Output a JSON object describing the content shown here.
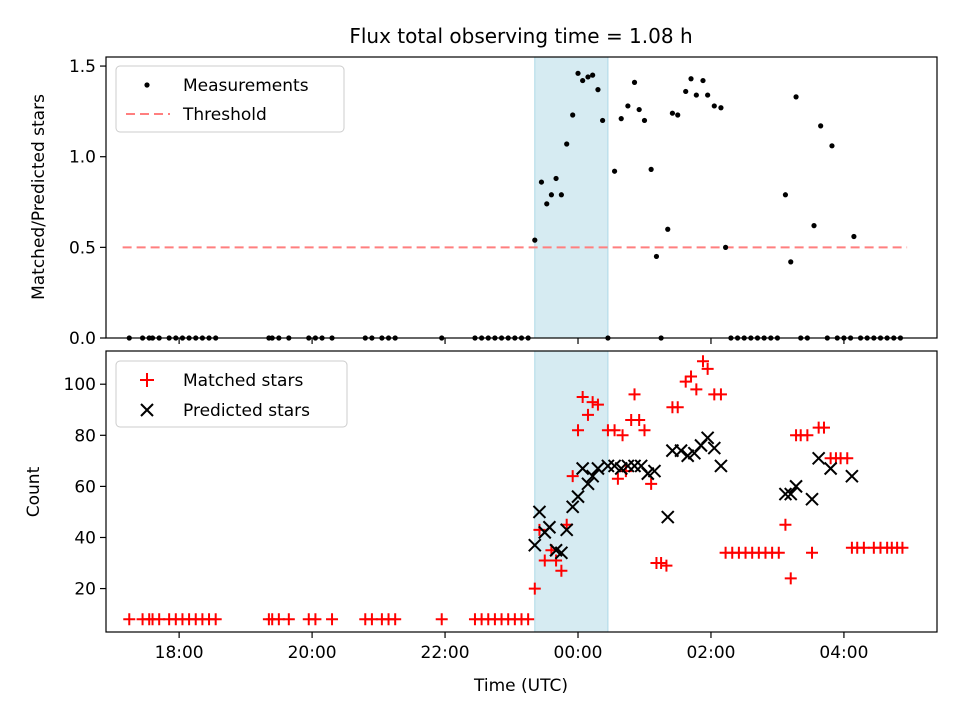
{
  "figure_title": "Flux total observing time = 1.08 h",
  "colors": {
    "measurement": "#000000",
    "threshold": "#ff7f7f",
    "matched": "#ff0000",
    "predicted": "#000000",
    "shade": "#add8e6"
  },
  "chart_data": [
    {
      "type": "scatter",
      "panel": "top",
      "title": "Flux total observing time = 1.08 h",
      "xlabel": "",
      "ylabel": "Matched/Predicted stars",
      "xlim": [
        -7.1,
        5.4
      ],
      "ylim": [
        0,
        1.55
      ],
      "yticks": [
        0.0,
        0.5,
        1.0,
        1.5
      ],
      "ytick_labels": [
        "0.0",
        "0.5",
        "1.0",
        "1.5"
      ],
      "shaded_span": [
        -0.65,
        0.45
      ],
      "legend": {
        "position": "upper left",
        "entries": [
          "Measurements",
          "Threshold"
        ]
      },
      "series": [
        {
          "name": "Measurements",
          "points": [
            [
              -6.75,
              0
            ],
            [
              -6.55,
              0
            ],
            [
              -6.45,
              0
            ],
            [
              -6.4,
              0
            ],
            [
              -6.3,
              0
            ],
            [
              -6.15,
              0
            ],
            [
              -6.05,
              0
            ],
            [
              -5.95,
              0
            ],
            [
              -5.85,
              0
            ],
            [
              -5.75,
              0
            ],
            [
              -5.65,
              0
            ],
            [
              -5.55,
              0
            ],
            [
              -5.45,
              0
            ],
            [
              -4.65,
              0
            ],
            [
              -4.6,
              0
            ],
            [
              -4.5,
              0
            ],
            [
              -4.35,
              0
            ],
            [
              -4.05,
              0
            ],
            [
              -3.95,
              0
            ],
            [
              -3.85,
              0
            ],
            [
              -3.7,
              0
            ],
            [
              -3.2,
              0
            ],
            [
              -3.1,
              0
            ],
            [
              -2.95,
              0
            ],
            [
              -2.85,
              0
            ],
            [
              -2.75,
              0
            ],
            [
              -2.05,
              0
            ],
            [
              -1.55,
              0
            ],
            [
              -1.45,
              0
            ],
            [
              -1.35,
              0
            ],
            [
              -1.25,
              0
            ],
            [
              -1.15,
              0
            ],
            [
              -1.05,
              0
            ],
            [
              -0.95,
              0
            ],
            [
              -0.85,
              0
            ],
            [
              -0.75,
              0
            ],
            [
              -0.65,
              0.54
            ],
            [
              -0.55,
              0.86
            ],
            [
              -0.47,
              0.74
            ],
            [
              -0.4,
              0.79
            ],
            [
              -0.33,
              0.88
            ],
            [
              -0.25,
              0.79
            ],
            [
              -0.17,
              1.07
            ],
            [
              -0.08,
              1.23
            ],
            [
              0.0,
              1.46
            ],
            [
              0.07,
              1.42
            ],
            [
              0.15,
              1.44
            ],
            [
              0.22,
              1.45
            ],
            [
              0.3,
              1.37
            ],
            [
              0.37,
              1.2
            ],
            [
              0.45,
              0
            ],
            [
              0.55,
              0.92
            ],
            [
              0.65,
              1.21
            ],
            [
              0.75,
              1.28
            ],
            [
              0.85,
              1.41
            ],
            [
              0.92,
              1.26
            ],
            [
              1.0,
              1.2
            ],
            [
              1.1,
              0.93
            ],
            [
              1.18,
              0.45
            ],
            [
              1.25,
              0
            ],
            [
              1.35,
              0.6
            ],
            [
              1.42,
              1.24
            ],
            [
              1.5,
              1.23
            ],
            [
              1.62,
              1.36
            ],
            [
              1.7,
              1.43
            ],
            [
              1.78,
              1.34
            ],
            [
              1.88,
              1.42
            ],
            [
              1.95,
              1.34
            ],
            [
              2.05,
              1.28
            ],
            [
              2.15,
              1.27
            ],
            [
              2.22,
              0.5
            ],
            [
              2.3,
              0
            ],
            [
              2.4,
              0
            ],
            [
              2.5,
              0
            ],
            [
              2.6,
              0
            ],
            [
              2.7,
              0
            ],
            [
              2.8,
              0
            ],
            [
              2.9,
              0
            ],
            [
              3.0,
              0
            ],
            [
              3.12,
              0.79
            ],
            [
              3.2,
              0.42
            ],
            [
              3.28,
              1.33
            ],
            [
              3.35,
              0
            ],
            [
              3.45,
              0
            ],
            [
              3.55,
              0.62
            ],
            [
              3.65,
              1.17
            ],
            [
              3.75,
              0
            ],
            [
              3.82,
              1.06
            ],
            [
              3.9,
              0
            ],
            [
              4.0,
              0
            ],
            [
              4.1,
              0
            ],
            [
              4.15,
              0.56
            ],
            [
              4.25,
              0
            ],
            [
              4.35,
              0
            ],
            [
              4.45,
              0
            ],
            [
              4.55,
              0
            ],
            [
              4.65,
              0
            ],
            [
              4.75,
              0
            ],
            [
              4.85,
              0
            ]
          ]
        },
        {
          "name": "Threshold",
          "line": [
            [
              -6.85,
              0.5
            ],
            [
              4.95,
              0.5
            ]
          ]
        }
      ]
    },
    {
      "type": "scatter",
      "panel": "bottom",
      "xlabel": "Time (UTC)",
      "ylabel": "Count",
      "xlim": [
        -7.1,
        5.4
      ],
      "ylim": [
        3,
        113
      ],
      "yticks": [
        20,
        40,
        60,
        80,
        100
      ],
      "ytick_labels": [
        "20",
        "40",
        "60",
        "80",
        "100"
      ],
      "xticks": [
        -6,
        -4,
        -2,
        0,
        2,
        4
      ],
      "xtick_labels": [
        "18:00",
        "20:00",
        "22:00",
        "00:00",
        "02:00",
        "04:00"
      ],
      "shaded_span": [
        -0.65,
        0.45
      ],
      "legend": {
        "position": "upper left",
        "entries": [
          "Matched stars",
          "Predicted stars"
        ]
      },
      "series": [
        {
          "name": "Matched stars",
          "points": [
            [
              -6.75,
              8
            ],
            [
              -6.55,
              8
            ],
            [
              -6.45,
              8
            ],
            [
              -6.4,
              8
            ],
            [
              -6.3,
              8
            ],
            [
              -6.15,
              8
            ],
            [
              -6.05,
              8
            ],
            [
              -5.95,
              8
            ],
            [
              -5.85,
              8
            ],
            [
              -5.75,
              8
            ],
            [
              -5.65,
              8
            ],
            [
              -5.55,
              8
            ],
            [
              -5.45,
              8
            ],
            [
              -4.65,
              8
            ],
            [
              -4.6,
              8
            ],
            [
              -4.5,
              8
            ],
            [
              -4.35,
              8
            ],
            [
              -4.05,
              8
            ],
            [
              -3.95,
              8
            ],
            [
              -3.7,
              8
            ],
            [
              -3.2,
              8
            ],
            [
              -3.1,
              8
            ],
            [
              -2.95,
              8
            ],
            [
              -2.85,
              8
            ],
            [
              -2.75,
              8
            ],
            [
              -2.05,
              8
            ],
            [
              -1.55,
              8
            ],
            [
              -1.45,
              8
            ],
            [
              -1.35,
              8
            ],
            [
              -1.25,
              8
            ],
            [
              -1.15,
              8
            ],
            [
              -1.05,
              8
            ],
            [
              -0.95,
              8
            ],
            [
              -0.85,
              8
            ],
            [
              -0.75,
              8
            ],
            [
              -0.65,
              20
            ],
            [
              -0.58,
              43
            ],
            [
              -0.5,
              31
            ],
            [
              -0.4,
              35
            ],
            [
              -0.33,
              31
            ],
            [
              -0.25,
              27
            ],
            [
              -0.17,
              45
            ],
            [
              -0.08,
              64
            ],
            [
              0.0,
              82
            ],
            [
              0.07,
              95
            ],
            [
              0.15,
              88
            ],
            [
              0.22,
              93
            ],
            [
              0.3,
              92
            ],
            [
              0.45,
              82
            ],
            [
              0.55,
              82
            ],
            [
              0.6,
              63
            ],
            [
              0.67,
              80
            ],
            [
              0.72,
              66
            ],
            [
              0.8,
              86
            ],
            [
              0.85,
              96
            ],
            [
              0.92,
              86
            ],
            [
              1.0,
              82
            ],
            [
              1.1,
              61
            ],
            [
              1.18,
              30
            ],
            [
              1.25,
              30
            ],
            [
              1.33,
              29
            ],
            [
              1.42,
              91
            ],
            [
              1.5,
              91
            ],
            [
              1.62,
              101
            ],
            [
              1.7,
              103
            ],
            [
              1.78,
              98
            ],
            [
              1.88,
              109
            ],
            [
              1.95,
              106
            ],
            [
              2.05,
              96
            ],
            [
              2.15,
              96
            ],
            [
              2.22,
              34
            ],
            [
              2.32,
              34
            ],
            [
              2.42,
              34
            ],
            [
              2.52,
              34
            ],
            [
              2.62,
              34
            ],
            [
              2.72,
              34
            ],
            [
              2.82,
              34
            ],
            [
              2.92,
              34
            ],
            [
              3.02,
              34
            ],
            [
              3.12,
              45
            ],
            [
              3.2,
              24
            ],
            [
              3.28,
              80
            ],
            [
              3.35,
              80
            ],
            [
              3.45,
              80
            ],
            [
              3.52,
              34
            ],
            [
              3.62,
              83
            ],
            [
              3.7,
              83
            ],
            [
              3.8,
              71
            ],
            [
              3.88,
              71
            ],
            [
              3.95,
              71
            ],
            [
              4.05,
              71
            ],
            [
              4.12,
              36
            ],
            [
              4.2,
              36
            ],
            [
              4.3,
              36
            ],
            [
              4.45,
              36
            ],
            [
              4.55,
              36
            ],
            [
              4.65,
              36
            ],
            [
              4.72,
              36
            ],
            [
              4.8,
              36
            ],
            [
              4.88,
              36
            ]
          ]
        },
        {
          "name": "Predicted stars",
          "points": [
            [
              -0.65,
              37
            ],
            [
              -0.58,
              50
            ],
            [
              -0.5,
              42
            ],
            [
              -0.43,
              44
            ],
            [
              -0.33,
              35
            ],
            [
              -0.25,
              34
            ],
            [
              -0.17,
              43
            ],
            [
              -0.08,
              52
            ],
            [
              0.0,
              56
            ],
            [
              0.07,
              67
            ],
            [
              0.15,
              61
            ],
            [
              0.22,
              64
            ],
            [
              0.3,
              67
            ],
            [
              0.45,
              68
            ],
            [
              0.55,
              68
            ],
            [
              0.65,
              67
            ],
            [
              0.75,
              68
            ],
            [
              0.85,
              68
            ],
            [
              0.95,
              68
            ],
            [
              1.05,
              65
            ],
            [
              1.15,
              66
            ],
            [
              1.35,
              48
            ],
            [
              1.42,
              74
            ],
            [
              1.55,
              74
            ],
            [
              1.65,
              72
            ],
            [
              1.75,
              73
            ],
            [
              1.85,
              76
            ],
            [
              1.95,
              79
            ],
            [
              2.05,
              75
            ],
            [
              2.15,
              68
            ],
            [
              3.12,
              57
            ],
            [
              3.2,
              57
            ],
            [
              3.28,
              60
            ],
            [
              3.52,
              55
            ],
            [
              3.62,
              71
            ],
            [
              3.8,
              67
            ],
            [
              4.12,
              64
            ]
          ]
        }
      ]
    }
  ]
}
